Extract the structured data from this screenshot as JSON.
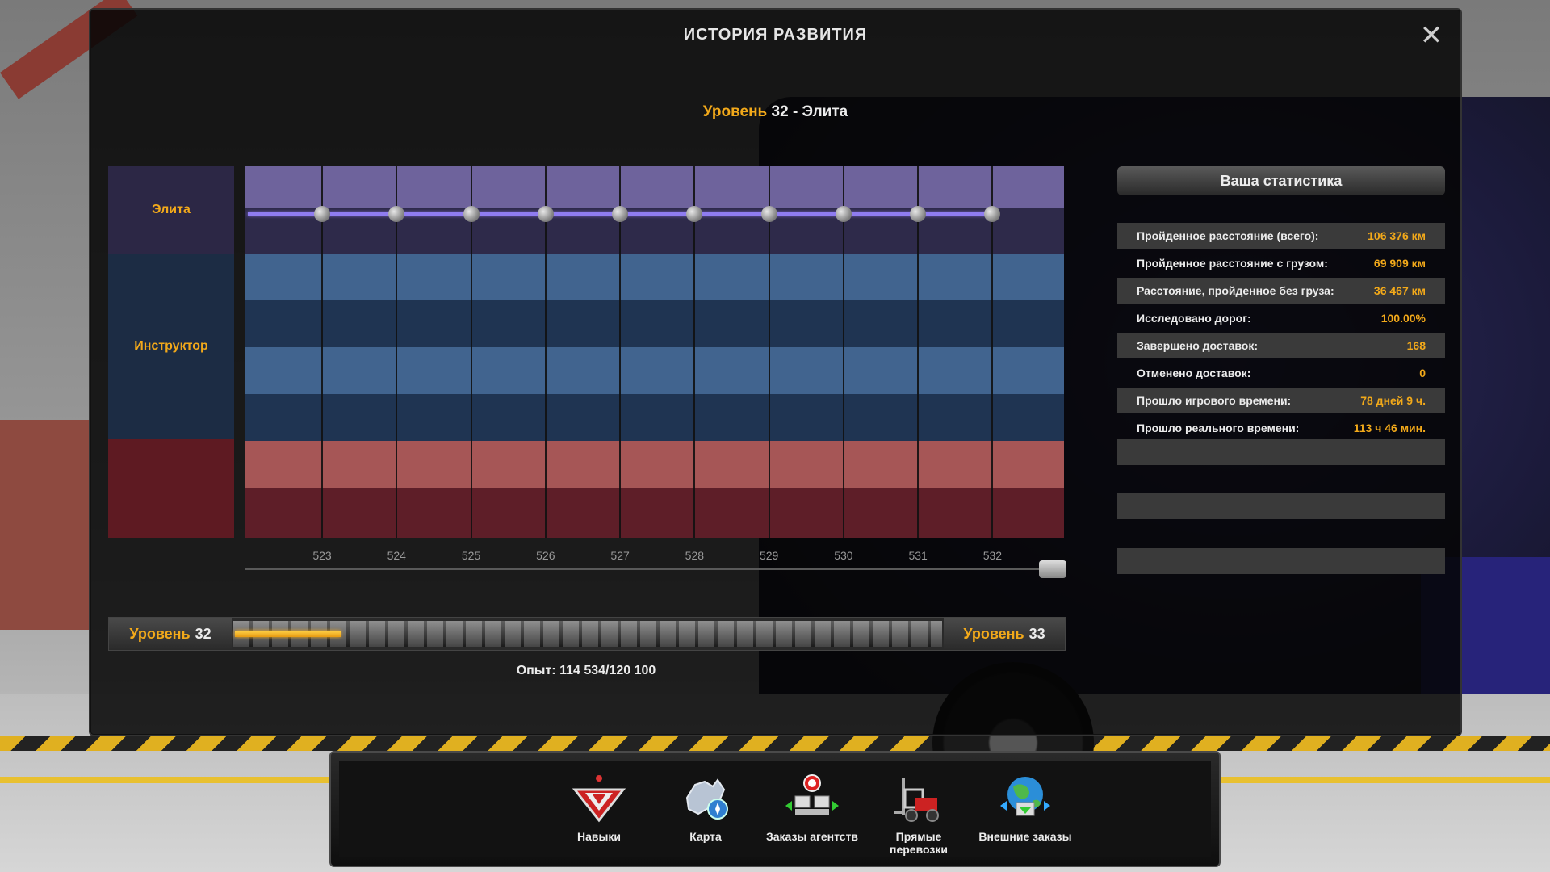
{
  "dialog": {
    "title": "ИСТОРИЯ РАЗВИТИЯ",
    "close_label": "✕",
    "heading_level": "Уровень",
    "heading_rest": "32 - Элита"
  },
  "ranks": [
    {
      "label": "Элита",
      "color": "#2c2745"
    },
    {
      "label": "Инструктор",
      "color": "#1c2c44"
    },
    {
      "label": "",
      "color": "#5e1a22"
    }
  ],
  "chart_data": {
    "type": "line",
    "x": [
      522,
      523,
      524,
      525,
      526,
      527,
      528,
      529,
      530,
      531,
      532
    ],
    "x_tick_labels": [
      "523",
      "524",
      "525",
      "526",
      "527",
      "528",
      "529",
      "530",
      "531",
      "532"
    ],
    "series": [
      {
        "values": [
          32,
          32,
          32,
          32,
          32,
          32,
          32,
          32,
          32,
          32,
          32
        ]
      }
    ],
    "band_colors": [
      "#6e639c",
      "#2e2a4a",
      "#41648f",
      "#1f3452",
      "#41648f",
      "#1f3452",
      "#a65656",
      "#5e1e28"
    ],
    "line_color": "#8f7cf0"
  },
  "xp": {
    "left_level": "Уровень",
    "left_num": "32",
    "right_level": "Уровень",
    "right_num": "33",
    "progress": 0.15,
    "text": "Опыт: 114 534/120 100"
  },
  "stats": {
    "title": "Ваша статистика",
    "rows": [
      {
        "label": "Пройденное расстояние (всего):",
        "value": "106 376 км"
      },
      {
        "label": "Пройденное расстояние с грузом:",
        "value": "69 909 км"
      },
      {
        "label": "Расстояние, пройденное без груза:",
        "value": "36 467 км"
      },
      {
        "label": "Исследовано дорог:",
        "value": "100.00%"
      },
      {
        "label": "Завершено доставок:",
        "value": "168"
      },
      {
        "label": "Отменено доставок:",
        "value": "0"
      },
      {
        "label": "Прошло игрового времени:",
        "value": "78 дней 9 ч."
      },
      {
        "label": "Прошло реального времени:",
        "value": "113 ч 46 мин."
      }
    ]
  },
  "dock": {
    "items": [
      {
        "label": "Навыки",
        "icon": "skills-icon"
      },
      {
        "label": "Карта",
        "icon": "map-icon"
      },
      {
        "label": "Заказы агентств",
        "icon": "agency-orders-icon"
      },
      {
        "label": "Прямые перевозки",
        "icon": "forklift-icon"
      },
      {
        "label": "Внешние заказы",
        "icon": "globe-icon"
      }
    ]
  },
  "colors": {
    "accent": "#f2a91a",
    "text": "#ececec"
  }
}
